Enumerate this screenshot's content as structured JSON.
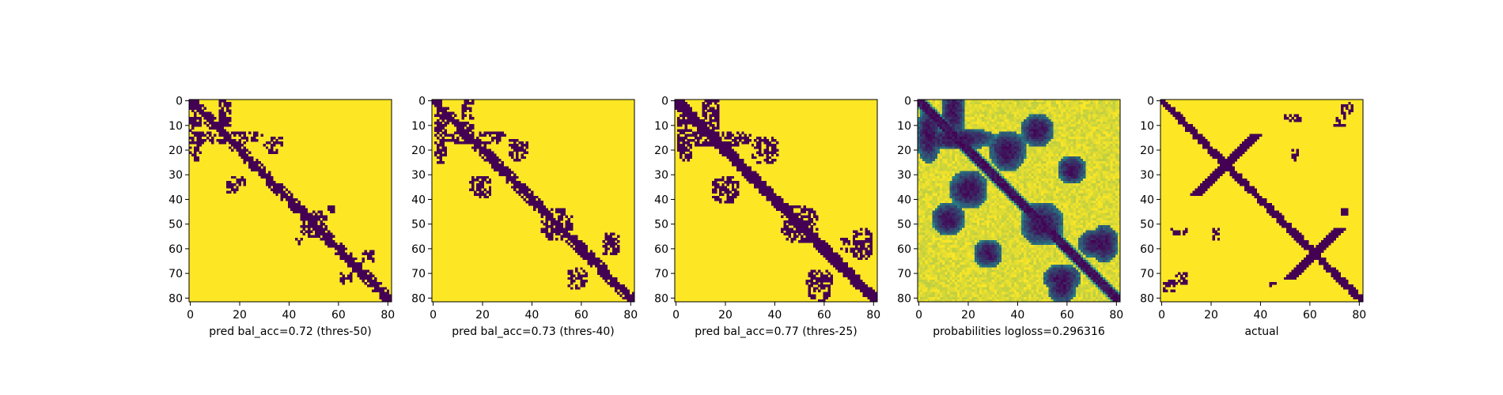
{
  "chart_data": [
    {
      "type": "heatmap",
      "xlabel": "pred bal_acc=0.72 (thres-50)",
      "ylabel": "",
      "xticks": [
        0,
        20,
        40,
        60,
        80
      ],
      "yticks": [
        0,
        10,
        20,
        30,
        40,
        50,
        60,
        70,
        80
      ],
      "xlim": [
        0,
        82
      ],
      "ylim": [
        0,
        82
      ],
      "y_inverted": true,
      "colors": {
        "low": "#440154",
        "high": "#fde725"
      },
      "values": {
        "binary": true,
        "diagonal_halfwidth": 1.6,
        "blobs": [
          {
            "r": 14,
            "c": 2,
            "r2": 11,
            "c2": 3
          },
          {
            "r": 16,
            "c": 14,
            "r2": 2,
            "c2": 14
          },
          {
            "r": 17,
            "c": 35,
            "r2": 3,
            "c2": 3
          },
          {
            "r": 33,
            "c": 19,
            "r2": 3,
            "c2": 4
          },
          {
            "r": 44,
            "c": 57,
            "r2": 2,
            "c2": 2
          },
          {
            "r": 50,
            "c": 50,
            "r2": 6,
            "c2": 6
          },
          {
            "r": 63,
            "c": 72,
            "r2": 3,
            "c2": 3
          }
        ]
      }
    },
    {
      "type": "heatmap",
      "xlabel": "pred bal_acc=0.73 (thres-40)",
      "ylabel": "",
      "xticks": [
        0,
        20,
        40,
        60,
        80
      ],
      "yticks": [
        0,
        10,
        20,
        30,
        40,
        50,
        60,
        70,
        80
      ],
      "xlim": [
        0,
        82
      ],
      "ylim": [
        0,
        82
      ],
      "y_inverted": true,
      "colors": {
        "low": "#440154",
        "high": "#fde725"
      },
      "values": {
        "binary": true,
        "diagonal_halfwidth": 1.8,
        "blobs": [
          {
            "r": 14,
            "c": 3,
            "r2": 12,
            "c2": 3
          },
          {
            "r": 16,
            "c": 14,
            "r2": 2,
            "c2": 14
          },
          {
            "r": 20,
            "c": 35,
            "r2": 5,
            "c2": 4
          },
          {
            "r": 34,
            "c": 19,
            "r2": 4,
            "c2": 5
          },
          {
            "r": 50,
            "c": 50,
            "r2": 7,
            "c2": 7
          },
          {
            "r": 58,
            "c": 72,
            "r2": 5,
            "c2": 4
          },
          {
            "r": 71,
            "c": 60,
            "r2": 3,
            "c2": 3
          }
        ]
      }
    },
    {
      "type": "heatmap",
      "xlabel": "pred bal_acc=0.77 (thres-25)",
      "ylabel": "",
      "xticks": [
        0,
        20,
        40,
        60,
        80
      ],
      "yticks": [
        0,
        10,
        20,
        30,
        40,
        50,
        60,
        70,
        80
      ],
      "xlim": [
        0,
        82
      ],
      "ylim": [
        0,
        82
      ],
      "y_inverted": true,
      "colors": {
        "low": "#440154",
        "high": "#fde725"
      },
      "values": {
        "binary": true,
        "diagonal_halfwidth": 2.2,
        "blobs": [
          {
            "r": 14,
            "c": 4,
            "r2": 11,
            "c2": 4
          },
          {
            "r": 16,
            "c": 15,
            "r2": 3,
            "c2": 15
          },
          {
            "r": 21,
            "c": 36,
            "r2": 5,
            "c2": 5
          },
          {
            "r": 36,
            "c": 20,
            "r2": 6,
            "c2": 6
          },
          {
            "r": 50,
            "c": 50,
            "r2": 8,
            "c2": 8
          },
          {
            "r": 58,
            "c": 75,
            "r2": 7,
            "c2": 5
          },
          {
            "r": 72,
            "c": 58,
            "r2": 4,
            "c2": 6
          }
        ]
      }
    },
    {
      "type": "heatmap",
      "xlabel": "probabilities logloss=0.296316",
      "ylabel": "",
      "xticks": [
        0,
        20,
        40,
        60,
        80
      ],
      "yticks": [
        0,
        10,
        20,
        30,
        40,
        50,
        60,
        70,
        80
      ],
      "xlim": [
        0,
        82
      ],
      "ylim": [
        0,
        82
      ],
      "y_inverted": true,
      "colors": {
        "low": "#440154",
        "mid": "#21918c",
        "high": "#fde725"
      },
      "values": {
        "binary": false,
        "diagonal_halfwidth": 2.4,
        "blobs": [
          {
            "r": 14,
            "c": 4,
            "r2": 12,
            "c2": 5
          },
          {
            "r": 16,
            "c": 15,
            "r2": 4,
            "c2": 16
          },
          {
            "r": 21,
            "c": 36,
            "r2": 8,
            "c2": 7
          },
          {
            "r": 36,
            "c": 20,
            "r2": 8,
            "c2": 8
          },
          {
            "r": 50,
            "c": 50,
            "r2": 9,
            "c2": 9
          },
          {
            "r": 58,
            "c": 75,
            "r2": 8,
            "c2": 6
          },
          {
            "r": 72,
            "c": 58,
            "r2": 6,
            "c2": 8
          },
          {
            "r": 48,
            "c": 12,
            "r2": 7,
            "c2": 7
          },
          {
            "r": 28,
            "c": 62,
            "r2": 6,
            "c2": 6
          }
        ]
      }
    },
    {
      "type": "heatmap",
      "xlabel": "actual",
      "ylabel": "",
      "xticks": [
        0,
        20,
        40,
        60,
        80
      ],
      "yticks": [
        0,
        10,
        20,
        30,
        40,
        50,
        60,
        70,
        80
      ],
      "xlim": [
        0,
        82
      ],
      "ylim": [
        0,
        82
      ],
      "y_inverted": true,
      "colors": {
        "low": "#440154",
        "high": "#fde725"
      },
      "values": {
        "binary": true,
        "diagonal_halfwidth": 1.4,
        "anti_diagonals": [
          {
            "center": [
              26,
              26
            ],
            "halfwidth": 1.3,
            "extent": 12
          },
          {
            "center": [
              62,
              62
            ],
            "halfwidth": 1.3,
            "extent": 10
          }
        ],
        "blobs": [
          {
            "r": 26,
            "c": 26,
            "r2": 3,
            "c2": 3
          },
          {
            "r": 62,
            "c": 62,
            "r2": 3,
            "c2": 3
          },
          {
            "r": 8,
            "c": 72,
            "r2": 3,
            "c2": 3
          },
          {
            "r": 22,
            "c": 54,
            "r2": 3,
            "c2": 2
          },
          {
            "r": 53,
            "c": 7,
            "r2": 2,
            "c2": 4
          },
          {
            "r": 75,
            "c": 3,
            "r2": 3,
            "c2": 3
          },
          {
            "r": 45,
            "c": 74,
            "r2": 2,
            "c2": 2
          }
        ]
      }
    }
  ]
}
